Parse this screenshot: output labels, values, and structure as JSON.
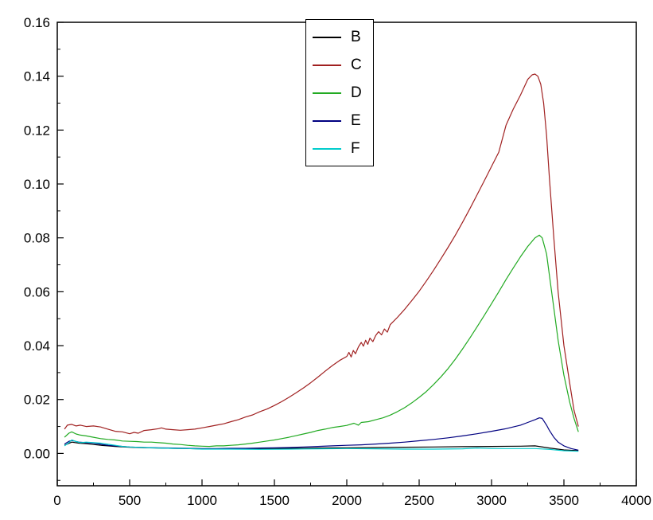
{
  "chart_data": {
    "type": "line",
    "title": "",
    "xlabel": "",
    "ylabel": "",
    "xlim": [
      0,
      4000
    ],
    "ylim": [
      -0.012,
      0.16
    ],
    "grid": false,
    "legend_position": "top-center",
    "xticks": {
      "values": [
        0,
        500,
        1000,
        1500,
        2000,
        2500,
        3000,
        3500,
        4000
      ],
      "labels": [
        "0",
        "500",
        "1000",
        "1500",
        "2000",
        "2500",
        "3000",
        "3500",
        "4000"
      ],
      "minor_step": 250
    },
    "yticks": {
      "values": [
        0,
        0.02,
        0.04,
        0.06,
        0.08,
        0.1,
        0.12,
        0.14,
        0.16
      ],
      "labels": [
        "0.00",
        "0.02",
        "0.04",
        "0.06",
        "0.08",
        "0.10",
        "0.12",
        "0.14",
        "0.16"
      ],
      "minor_step": 0.01
    },
    "series": [
      {
        "name": "B",
        "color": "#000000",
        "points": [
          [
            50,
            0.003
          ],
          [
            100,
            0.0042
          ],
          [
            150,
            0.0038
          ],
          [
            200,
            0.0036
          ],
          [
            250,
            0.0033
          ],
          [
            300,
            0.003
          ],
          [
            350,
            0.0028
          ],
          [
            400,
            0.0026
          ],
          [
            500,
            0.0023
          ],
          [
            600,
            0.0021
          ],
          [
            700,
            0.002
          ],
          [
            800,
            0.0019
          ],
          [
            1000,
            0.0017
          ],
          [
            1200,
            0.0017
          ],
          [
            1400,
            0.0018
          ],
          [
            1600,
            0.0019
          ],
          [
            1800,
            0.002
          ],
          [
            2000,
            0.0021
          ],
          [
            2200,
            0.0022
          ],
          [
            2400,
            0.0023
          ],
          [
            2600,
            0.0024
          ],
          [
            2800,
            0.0025
          ],
          [
            3000,
            0.0026
          ],
          [
            3200,
            0.0027
          ],
          [
            3300,
            0.0028
          ],
          [
            3400,
            0.002
          ],
          [
            3500,
            0.0013
          ],
          [
            3600,
            0.001
          ]
        ]
      },
      {
        "name": "C",
        "color": "#a02020",
        "points": [
          [
            50,
            0.009
          ],
          [
            70,
            0.0105
          ],
          [
            100,
            0.0108
          ],
          [
            130,
            0.0102
          ],
          [
            160,
            0.0105
          ],
          [
            200,
            0.01
          ],
          [
            250,
            0.0102
          ],
          [
            300,
            0.0098
          ],
          [
            350,
            0.009
          ],
          [
            400,
            0.0082
          ],
          [
            450,
            0.008
          ],
          [
            500,
            0.0073
          ],
          [
            530,
            0.0078
          ],
          [
            560,
            0.0075
          ],
          [
            600,
            0.0085
          ],
          [
            650,
            0.0088
          ],
          [
            700,
            0.0092
          ],
          [
            720,
            0.0095
          ],
          [
            750,
            0.009
          ],
          [
            800,
            0.0088
          ],
          [
            850,
            0.0086
          ],
          [
            900,
            0.0088
          ],
          [
            950,
            0.009
          ],
          [
            1000,
            0.0095
          ],
          [
            1050,
            0.01
          ],
          [
            1100,
            0.0105
          ],
          [
            1150,
            0.011
          ],
          [
            1200,
            0.0118
          ],
          [
            1250,
            0.0125
          ],
          [
            1300,
            0.0135
          ],
          [
            1350,
            0.0143
          ],
          [
            1400,
            0.0155
          ],
          [
            1450,
            0.0165
          ],
          [
            1500,
            0.0178
          ],
          [
            1550,
            0.0192
          ],
          [
            1600,
            0.0208
          ],
          [
            1650,
            0.0225
          ],
          [
            1700,
            0.0243
          ],
          [
            1750,
            0.0262
          ],
          [
            1800,
            0.0283
          ],
          [
            1850,
            0.0305
          ],
          [
            1900,
            0.0326
          ],
          [
            1950,
            0.0345
          ],
          [
            2000,
            0.036
          ],
          [
            2015,
            0.0375
          ],
          [
            2030,
            0.0358
          ],
          [
            2045,
            0.0382
          ],
          [
            2060,
            0.037
          ],
          [
            2080,
            0.0395
          ],
          [
            2100,
            0.0412
          ],
          [
            2115,
            0.0398
          ],
          [
            2130,
            0.042
          ],
          [
            2145,
            0.0405
          ],
          [
            2160,
            0.0428
          ],
          [
            2180,
            0.0415
          ],
          [
            2200,
            0.0438
          ],
          [
            2220,
            0.0452
          ],
          [
            2240,
            0.044
          ],
          [
            2260,
            0.0462
          ],
          [
            2280,
            0.045
          ],
          [
            2300,
            0.0478
          ],
          [
            2350,
            0.0505
          ],
          [
            2400,
            0.0535
          ],
          [
            2450,
            0.0568
          ],
          [
            2500,
            0.0602
          ],
          [
            2550,
            0.064
          ],
          [
            2600,
            0.068
          ],
          [
            2650,
            0.0722
          ],
          [
            2700,
            0.0765
          ],
          [
            2750,
            0.081
          ],
          [
            2800,
            0.0858
          ],
          [
            2850,
            0.0908
          ],
          [
            2900,
            0.096
          ],
          [
            2950,
            0.1012
          ],
          [
            3000,
            0.1065
          ],
          [
            3050,
            0.1118
          ],
          [
            3100,
            0.1218
          ],
          [
            3150,
            0.1278
          ],
          [
            3200,
            0.133
          ],
          [
            3250,
            0.1388
          ],
          [
            3280,
            0.1405
          ],
          [
            3300,
            0.1408
          ],
          [
            3320,
            0.14
          ],
          [
            3340,
            0.137
          ],
          [
            3360,
            0.13
          ],
          [
            3380,
            0.118
          ],
          [
            3400,
            0.102
          ],
          [
            3430,
            0.08
          ],
          [
            3460,
            0.06
          ],
          [
            3500,
            0.04
          ],
          [
            3540,
            0.026
          ],
          [
            3570,
            0.016
          ],
          [
            3600,
            0.01
          ]
        ]
      },
      {
        "name": "D",
        "color": "#22aa22",
        "points": [
          [
            50,
            0.006
          ],
          [
            80,
            0.0075
          ],
          [
            100,
            0.008
          ],
          [
            130,
            0.0072
          ],
          [
            160,
            0.0068
          ],
          [
            200,
            0.0065
          ],
          [
            250,
            0.006
          ],
          [
            300,
            0.0055
          ],
          [
            350,
            0.0052
          ],
          [
            400,
            0.005
          ],
          [
            450,
            0.0046
          ],
          [
            500,
            0.0045
          ],
          [
            550,
            0.0044
          ],
          [
            600,
            0.0042
          ],
          [
            650,
            0.0042
          ],
          [
            700,
            0.004
          ],
          [
            750,
            0.0038
          ],
          [
            800,
            0.0035
          ],
          [
            850,
            0.0033
          ],
          [
            900,
            0.003
          ],
          [
            950,
            0.0028
          ],
          [
            1000,
            0.0027
          ],
          [
            1050,
            0.0026
          ],
          [
            1100,
            0.0028
          ],
          [
            1150,
            0.0028
          ],
          [
            1200,
            0.003
          ],
          [
            1250,
            0.0032
          ],
          [
            1300,
            0.0035
          ],
          [
            1350,
            0.0038
          ],
          [
            1400,
            0.0042
          ],
          [
            1450,
            0.0046
          ],
          [
            1500,
            0.005
          ],
          [
            1550,
            0.0055
          ],
          [
            1600,
            0.006
          ],
          [
            1650,
            0.0066
          ],
          [
            1700,
            0.0072
          ],
          [
            1750,
            0.0078
          ],
          [
            1800,
            0.0085
          ],
          [
            1850,
            0.009
          ],
          [
            1900,
            0.0096
          ],
          [
            1950,
            0.01
          ],
          [
            2000,
            0.0104
          ],
          [
            2050,
            0.0112
          ],
          [
            2080,
            0.0105
          ],
          [
            2100,
            0.0115
          ],
          [
            2150,
            0.0118
          ],
          [
            2200,
            0.0125
          ],
          [
            2250,
            0.0132
          ],
          [
            2300,
            0.0142
          ],
          [
            2350,
            0.0155
          ],
          [
            2400,
            0.017
          ],
          [
            2450,
            0.0188
          ],
          [
            2500,
            0.0208
          ],
          [
            2550,
            0.023
          ],
          [
            2600,
            0.0256
          ],
          [
            2650,
            0.0284
          ],
          [
            2700,
            0.0315
          ],
          [
            2750,
            0.035
          ],
          [
            2800,
            0.0388
          ],
          [
            2850,
            0.0428
          ],
          [
            2900,
            0.047
          ],
          [
            2950,
            0.0512
          ],
          [
            3000,
            0.0556
          ],
          [
            3050,
            0.06
          ],
          [
            3100,
            0.0645
          ],
          [
            3150,
            0.0688
          ],
          [
            3200,
            0.073
          ],
          [
            3250,
            0.0768
          ],
          [
            3300,
            0.08
          ],
          [
            3330,
            0.081
          ],
          [
            3350,
            0.08
          ],
          [
            3380,
            0.074
          ],
          [
            3400,
            0.066
          ],
          [
            3430,
            0.054
          ],
          [
            3460,
            0.042
          ],
          [
            3500,
            0.029
          ],
          [
            3540,
            0.019
          ],
          [
            3570,
            0.013
          ],
          [
            3600,
            0.008
          ]
        ]
      },
      {
        "name": "E",
        "color": "#000080",
        "points": [
          [
            50,
            0.0035
          ],
          [
            80,
            0.0045
          ],
          [
            100,
            0.0048
          ],
          [
            150,
            0.0042
          ],
          [
            200,
            0.004
          ],
          [
            250,
            0.0038
          ],
          [
            300,
            0.0034
          ],
          [
            350,
            0.003
          ],
          [
            400,
            0.0028
          ],
          [
            450,
            0.0026
          ],
          [
            500,
            0.0024
          ],
          [
            600,
            0.0022
          ],
          [
            700,
            0.0021
          ],
          [
            800,
            0.002
          ],
          [
            900,
            0.0019
          ],
          [
            1000,
            0.0018
          ],
          [
            1100,
            0.0018
          ],
          [
            1200,
            0.0019
          ],
          [
            1300,
            0.0019
          ],
          [
            1400,
            0.002
          ],
          [
            1500,
            0.0021
          ],
          [
            1600,
            0.0022
          ],
          [
            1700,
            0.0024
          ],
          [
            1800,
            0.0026
          ],
          [
            1900,
            0.0028
          ],
          [
            2000,
            0.003
          ],
          [
            2100,
            0.0032
          ],
          [
            2200,
            0.0035
          ],
          [
            2300,
            0.0038
          ],
          [
            2400,
            0.0042
          ],
          [
            2500,
            0.0047
          ],
          [
            2600,
            0.0052
          ],
          [
            2700,
            0.0058
          ],
          [
            2800,
            0.0065
          ],
          [
            2900,
            0.0073
          ],
          [
            3000,
            0.0082
          ],
          [
            3100,
            0.0092
          ],
          [
            3200,
            0.0105
          ],
          [
            3250,
            0.0115
          ],
          [
            3300,
            0.0125
          ],
          [
            3330,
            0.0132
          ],
          [
            3350,
            0.013
          ],
          [
            3380,
            0.0105
          ],
          [
            3400,
            0.0085
          ],
          [
            3430,
            0.006
          ],
          [
            3460,
            0.0042
          ],
          [
            3500,
            0.0028
          ],
          [
            3550,
            0.0018
          ],
          [
            3600,
            0.0012
          ]
        ]
      },
      {
        "name": "F",
        "color": "#00cccc",
        "points": [
          [
            50,
            0.0028
          ],
          [
            80,
            0.004
          ],
          [
            100,
            0.005
          ],
          [
            130,
            0.0044
          ],
          [
            160,
            0.004
          ],
          [
            200,
            0.0042
          ],
          [
            250,
            0.004
          ],
          [
            300,
            0.0038
          ],
          [
            350,
            0.0034
          ],
          [
            400,
            0.003
          ],
          [
            450,
            0.0026
          ],
          [
            500,
            0.0024
          ],
          [
            600,
            0.0022
          ],
          [
            700,
            0.002
          ],
          [
            800,
            0.0019
          ],
          [
            900,
            0.0018
          ],
          [
            1000,
            0.0016
          ],
          [
            1200,
            0.0016
          ],
          [
            1400,
            0.0015
          ],
          [
            1600,
            0.0016
          ],
          [
            1800,
            0.0017
          ],
          [
            2000,
            0.0018
          ],
          [
            2200,
            0.0017
          ],
          [
            2400,
            0.0016
          ],
          [
            2600,
            0.0016
          ],
          [
            2800,
            0.0017
          ],
          [
            2900,
            0.002
          ],
          [
            3000,
            0.0018
          ],
          [
            3200,
            0.0018
          ],
          [
            3300,
            0.0018
          ],
          [
            3400,
            0.0015
          ],
          [
            3500,
            0.001
          ],
          [
            3600,
            0.0008
          ]
        ]
      }
    ]
  },
  "legend": {
    "entries": [
      {
        "label": "B",
        "color": "#000000"
      },
      {
        "label": "C",
        "color": "#a02020"
      },
      {
        "label": "D",
        "color": "#22aa22"
      },
      {
        "label": "E",
        "color": "#000080"
      },
      {
        "label": "F",
        "color": "#00cccc"
      }
    ]
  }
}
